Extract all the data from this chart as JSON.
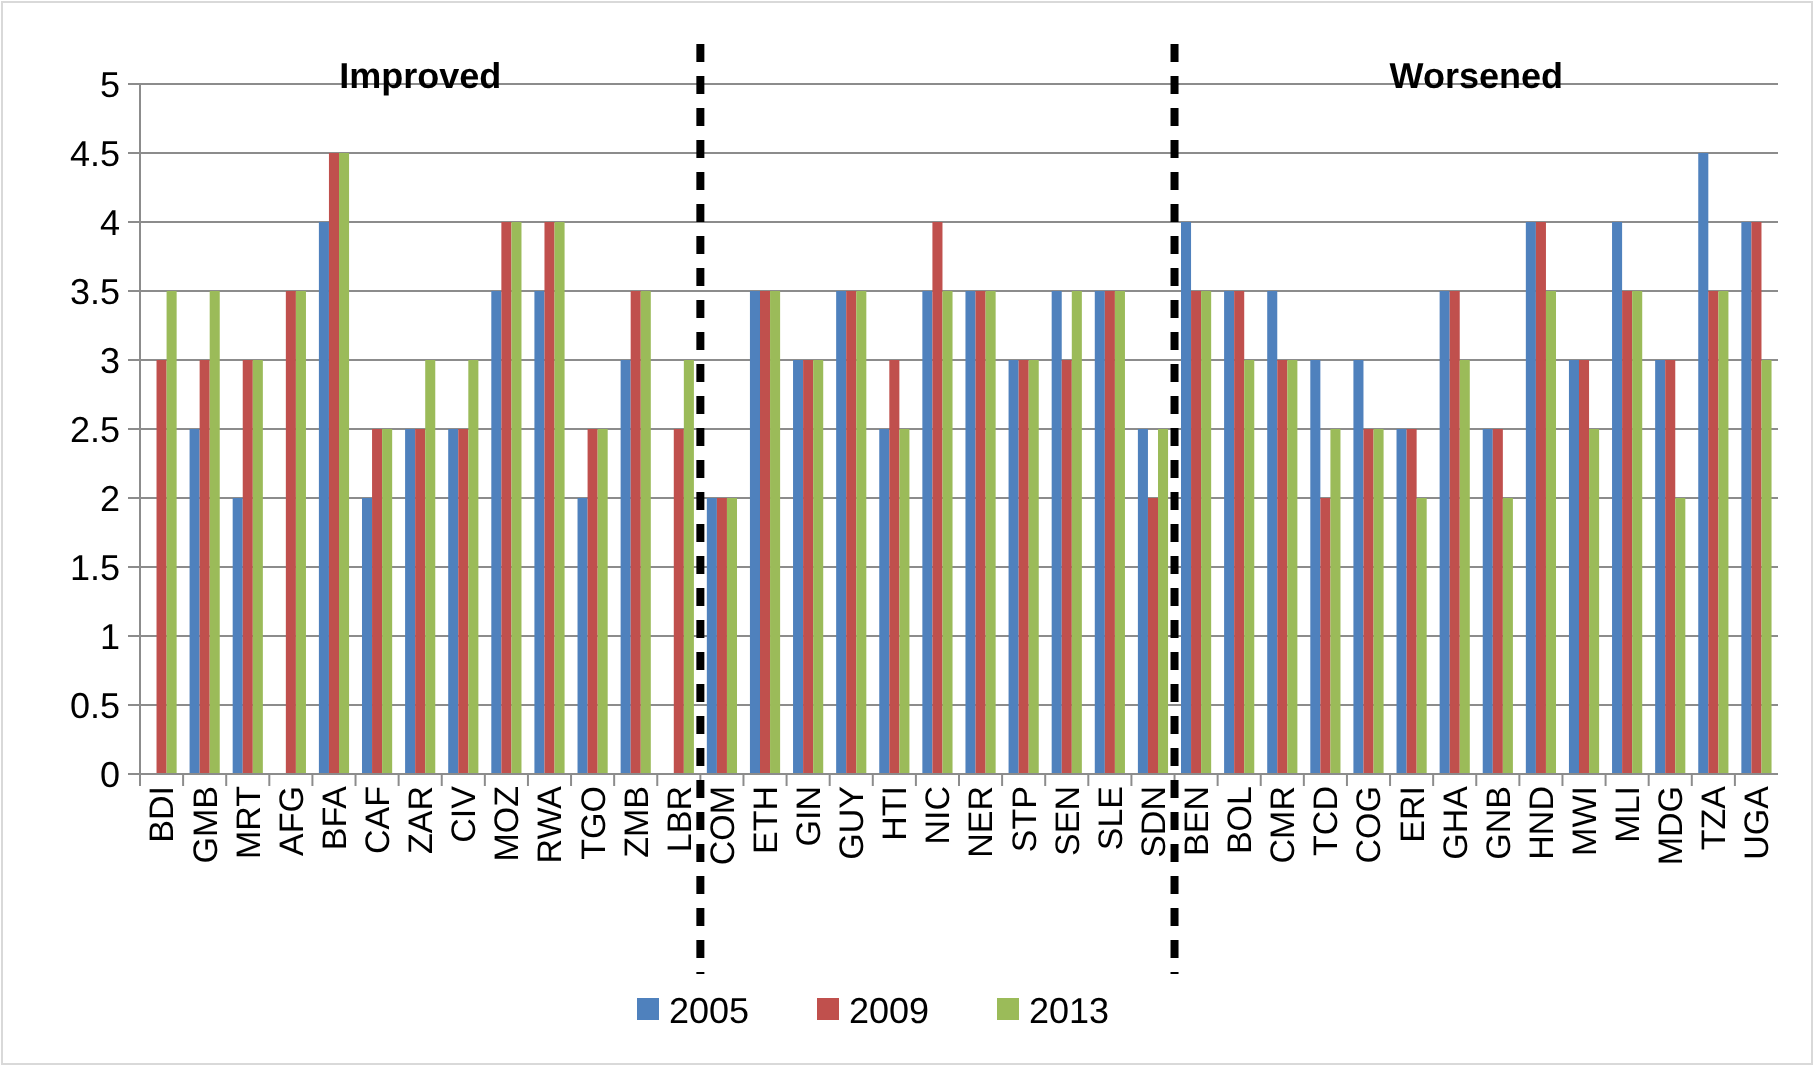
{
  "chart_data": {
    "type": "bar",
    "categories": [
      "BDI",
      "GMB",
      "MRT",
      "AFG",
      "BFA",
      "CAF",
      "ZAR",
      "CIV",
      "MOZ",
      "RWA",
      "TGO",
      "ZMB",
      "LBR",
      "COM",
      "ETH",
      "GIN",
      "GUY",
      "HTI",
      "NIC",
      "NER",
      "STP",
      "SEN",
      "SLE",
      "SDN",
      "BEN",
      "BOL",
      "CMR",
      "TCD",
      "COG",
      "ERI",
      "GHA",
      "GNB",
      "HND",
      "MWI",
      "MLI",
      "MDG",
      "TZA",
      "UGA"
    ],
    "series": [
      {
        "name": "2005",
        "color": "#4f81bd",
        "values": [
          null,
          2.5,
          2,
          null,
          4,
          2,
          2.5,
          2.5,
          3.5,
          3.5,
          2,
          3,
          null,
          2,
          3.5,
          3,
          3.5,
          2.5,
          3.5,
          3.5,
          3,
          3.5,
          3.5,
          2.5,
          4,
          3.5,
          3.5,
          3,
          3,
          2.5,
          3.5,
          2.5,
          4,
          3,
          4,
          3,
          4.5,
          4
        ]
      },
      {
        "name": "2009",
        "color": "#c0504d",
        "values": [
          3,
          3,
          3,
          3.5,
          4.5,
          2.5,
          2.5,
          2.5,
          4,
          4,
          2.5,
          3.5,
          2.5,
          2,
          3.5,
          3,
          3.5,
          3,
          4,
          3.5,
          3,
          3,
          3.5,
          2,
          3.5,
          3.5,
          3,
          2,
          2.5,
          2.5,
          3.5,
          2.5,
          4,
          3,
          3.5,
          3,
          3.5,
          4
        ]
      },
      {
        "name": "2013",
        "color": "#9bbb59",
        "values": [
          3.5,
          3.5,
          3,
          3.5,
          4.5,
          2.5,
          3,
          3,
          4,
          4,
          2.5,
          3.5,
          3,
          2,
          3.5,
          3,
          3.5,
          2.5,
          3.5,
          3.5,
          3,
          3.5,
          3.5,
          2.5,
          3.5,
          3,
          3,
          2.5,
          2.5,
          2,
          3,
          2,
          3.5,
          2.5,
          3.5,
          2,
          3.5,
          3
        ]
      }
    ],
    "ylim": [
      0,
      5
    ],
    "yticks": [
      0,
      0.5,
      1,
      1.5,
      2,
      2.5,
      3,
      3.5,
      4,
      4.5,
      5
    ],
    "grid": "y",
    "legend": "bottom",
    "annotations": [
      "Improved",
      "Worsened"
    ]
  }
}
